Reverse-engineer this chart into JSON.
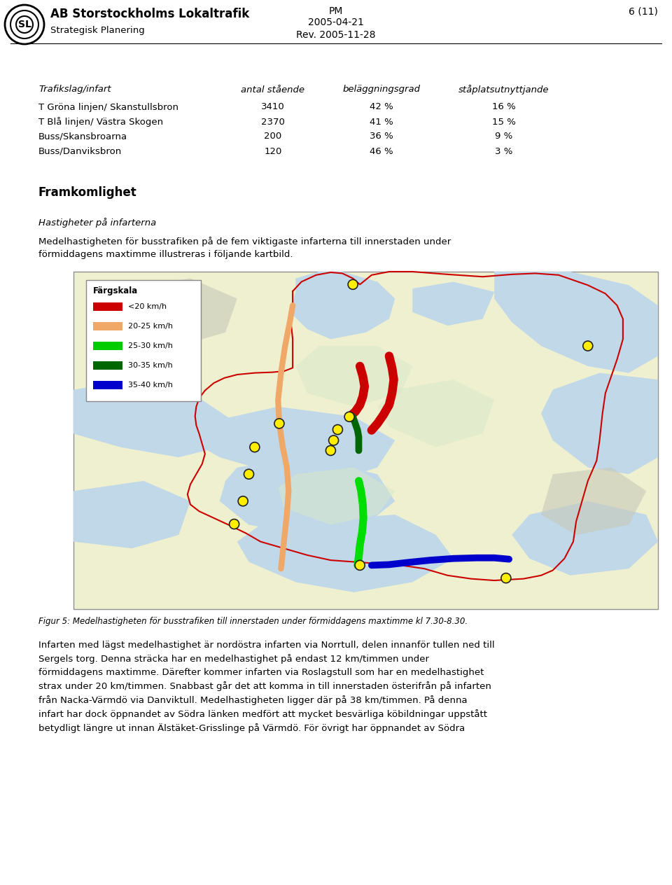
{
  "page_bg": "#ffffff",
  "header": {
    "company": "AB Storstockholms Lokaltrafik",
    "dept": "Strategisk Planering",
    "doc_type": "PM",
    "date1": "2005-04-21",
    "date2": "Rev. 2005-11-28",
    "page": "6 (11)"
  },
  "table_header": [
    "Trafikslag/infart",
    "antal stående",
    "beläggningsgrad",
    "ståplatsutnyttjande"
  ],
  "table_rows": [
    [
      "T Gröna linjen/ Skanstullsbron",
      "3410",
      "42 %",
      "16 %"
    ],
    [
      "T Blå linjen/ Västra Skogen",
      "2370",
      "41 %",
      "15 %"
    ],
    [
      "Buss/Skansbroarna",
      "200",
      "36 %",
      "9 %"
    ],
    [
      "Buss/Danviksbron",
      "120",
      "46 %",
      "3 %"
    ]
  ],
  "section_heading": "Framkomlighet",
  "subsection_heading": "Hastigheter på infarterna",
  "paragraph1": "Medelhastigheten för busstrafiken på de fem viktigaste infarterna till innerstaden under\nförmiddagens maxtimme illustreras i följande kartbild.",
  "figure_caption": "Figur 5: Medelhastigheten för busstrafiken till innerstaden under förmiddagens maxtimme kl 7.30-8.30.",
  "paragraph2": "Infarten med lägst medelhastighet är nordöstra infarten via Norrtull, delen innanför tullen ned till\nSergels torg. Denna sträcka har en medelhastighet på endast 12 km/timmen under\nförmiddagens maxtimme. Därefter kommer infarten via Roslagstull som har en medelhastighet\nstrax under 20 km/timmen. Snabbast går det att komma in till innerstaden österifrån på infarten\nfrån Nacka-Värmdö via Danviktull. Medelhastigheten ligger där på 38 km/timmen. På denna\ninfart har dock öppnandet av Södra länken medfört att mycket besvärliga köbildningar uppstått\nbetydligt längre ut innan Älstäket-Grisslinge på Värmdö. För övrigt har öppnandet av Södra",
  "legend_label": "Färgskala",
  "legend_items": [
    {
      "label": "<20 km/h",
      "color": "#cc0000"
    },
    {
      "label": "20-25 km/h",
      "color": "#f0a868"
    },
    {
      "label": "25-30 km/h",
      "color": "#00cc00"
    },
    {
      "label": "30-35 km/h",
      "color": "#006600"
    },
    {
      "label": "35-40 km/h",
      "color": "#0000cc"
    }
  ],
  "map_land_color": "#f0f0d0",
  "map_water_color": "#c8dce8",
  "map_light_land": "#e8f0e0",
  "map_urban_color": "#d8d8c0",
  "map_border_color": "#808080"
}
